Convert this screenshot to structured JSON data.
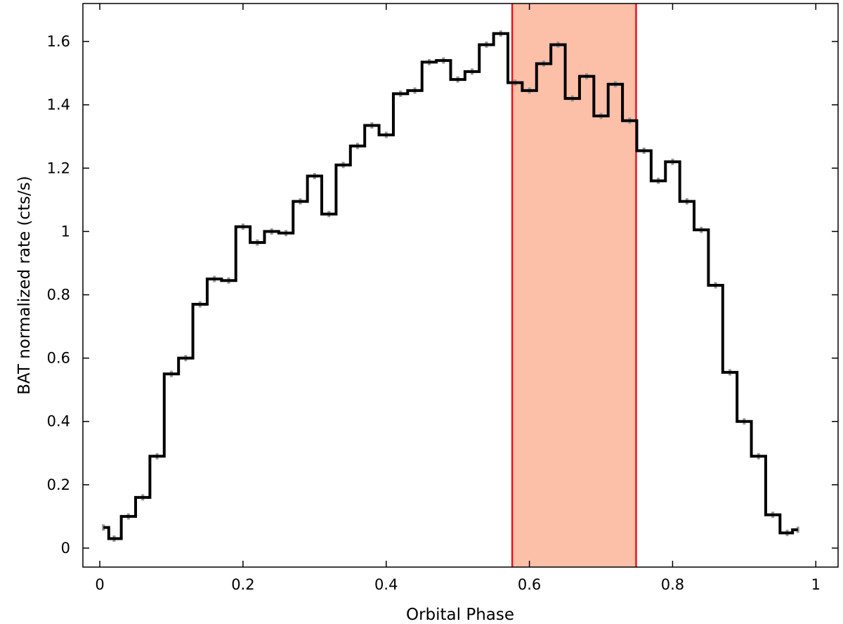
{
  "chart_data": {
    "type": "line",
    "title": "",
    "xlabel": "Orbital Phase",
    "ylabel": "BAT normalized rate (cts/s)",
    "xlim": [
      -0.0236,
      1.0311
    ],
    "ylim": [
      -0.06,
      1.72
    ],
    "xticks": [
      0,
      0.2,
      0.4,
      0.6,
      0.8,
      1
    ],
    "xtick_labels": [
      "0",
      "0.2",
      "0.4",
      "0.6",
      "0.8",
      "1"
    ],
    "yticks": [
      0,
      0.2,
      0.4,
      0.6,
      0.8,
      1,
      1.2,
      1.4,
      1.6
    ],
    "ytick_labels": [
      "0",
      "0.2",
      "0.4",
      "0.6",
      "0.8",
      "1",
      "1.2",
      "1.4",
      "1.6"
    ],
    "grid": false,
    "shaded_region": {
      "x0": 0.576,
      "x1": 0.749,
      "fill": "#fcbfa8",
      "edge": "#e8141c"
    },
    "line_color": "#000000",
    "error_color": "#999999",
    "series": [
      {
        "style": "steps-mid",
        "bin_width": 0.02,
        "x": [
          0.005,
          0.02,
          0.04,
          0.06,
          0.08,
          0.1,
          0.12,
          0.14,
          0.16,
          0.18,
          0.2,
          0.22,
          0.24,
          0.26,
          0.28,
          0.3,
          0.32,
          0.34,
          0.36,
          0.38,
          0.4,
          0.42,
          0.44,
          0.46,
          0.48,
          0.5,
          0.52,
          0.54,
          0.56,
          0.58,
          0.6,
          0.62,
          0.64,
          0.66,
          0.68,
          0.7,
          0.72,
          0.74,
          0.76,
          0.78,
          0.8,
          0.82,
          0.84,
          0.86,
          0.88,
          0.9,
          0.92,
          0.94,
          0.96,
          0.975
        ],
        "values": [
          0.065,
          0.03,
          0.1,
          0.16,
          0.29,
          0.55,
          0.6,
          0.77,
          0.85,
          0.845,
          1.015,
          0.965,
          1.0,
          0.995,
          1.095,
          1.175,
          1.055,
          1.21,
          1.27,
          1.335,
          1.305,
          1.435,
          1.445,
          1.535,
          1.54,
          1.48,
          1.505,
          1.59,
          1.625,
          1.47,
          1.445,
          1.53,
          1.59,
          1.42,
          1.49,
          1.365,
          1.465,
          1.35,
          1.255,
          1.16,
          1.22,
          1.095,
          1.005,
          0.83,
          0.555,
          0.4,
          0.29,
          0.105,
          0.048,
          0.058
        ],
        "errors": [
          0.01,
          0.01,
          0.01,
          0.01,
          0.01,
          0.01,
          0.01,
          0.01,
          0.01,
          0.01,
          0.01,
          0.01,
          0.01,
          0.01,
          0.01,
          0.01,
          0.01,
          0.01,
          0.01,
          0.01,
          0.01,
          0.01,
          0.01,
          0.01,
          0.01,
          0.01,
          0.01,
          0.01,
          0.01,
          0.01,
          0.01,
          0.01,
          0.01,
          0.01,
          0.01,
          0.01,
          0.01,
          0.01,
          0.01,
          0.01,
          0.01,
          0.01,
          0.01,
          0.01,
          0.01,
          0.01,
          0.01,
          0.01,
          0.01,
          0.01
        ]
      }
    ]
  }
}
